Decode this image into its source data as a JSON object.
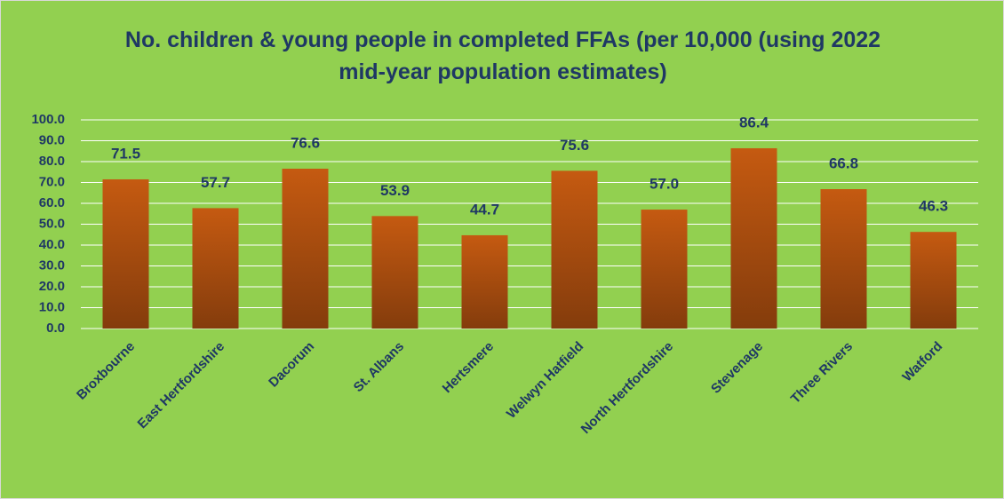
{
  "chart_data": {
    "type": "bar",
    "title": "No. children & young people in completed FFAs (per 10,000 (using 2022 mid-year population estimates)",
    "categories": [
      "Broxbourne",
      "East Hertfordshire",
      "Dacorum",
      "St. Albans",
      "Hertsmere",
      "Welwyn Hatfield",
      "North Hertfordshire",
      "Stevenage",
      "Three Rivers",
      "Watford"
    ],
    "values": [
      71.5,
      57.7,
      76.6,
      53.9,
      44.7,
      75.6,
      57,
      86.4,
      66.8,
      46.3
    ],
    "value_labels": [
      "71.5",
      "57.7",
      "76.6",
      "53.9",
      "44.7",
      "75.6",
      "57.0",
      "86.4",
      "66.8",
      "46.3"
    ],
    "color": "#c55a11",
    "ylim": [
      0,
      100
    ],
    "yticks": [
      {
        "value": 0,
        "label": "0.0"
      },
      {
        "value": 10,
        "label": "10.0"
      },
      {
        "value": 20,
        "label": "20.0"
      },
      {
        "value": 30,
        "label": "30.0"
      },
      {
        "value": 40,
        "label": "40.0"
      },
      {
        "value": 50,
        "label": "50.0"
      },
      {
        "value": 60,
        "label": "60.0"
      },
      {
        "value": 70,
        "label": "70.0"
      },
      {
        "value": 80,
        "label": "80.0"
      },
      {
        "value": 90,
        "label": "90.0"
      },
      {
        "value": 100,
        "label": "100.0"
      }
    ],
    "grid": true
  }
}
